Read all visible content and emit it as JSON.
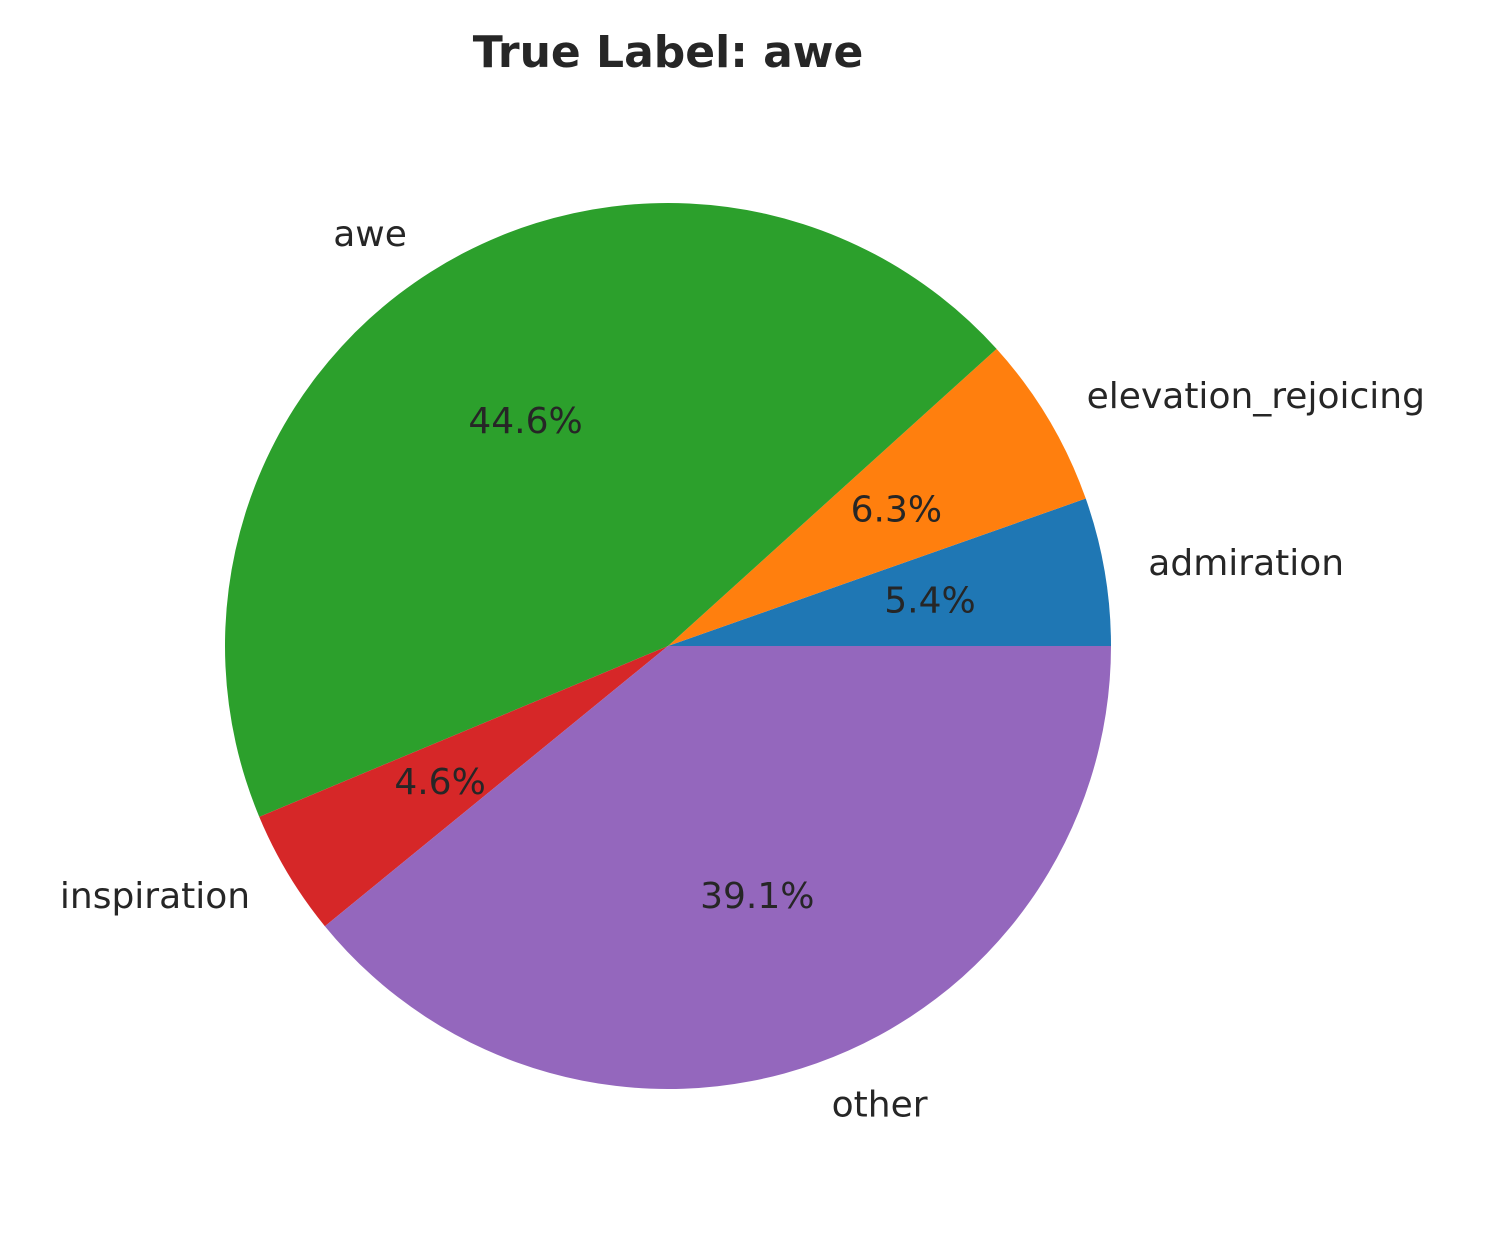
{
  "chart_data": {
    "type": "pie",
    "title": "True Label: awe",
    "labels": [
      "admiration",
      "elevation_rejoicing",
      "awe",
      "inspiration",
      "other"
    ],
    "values": [
      5.4,
      6.3,
      44.6,
      4.6,
      39.1
    ],
    "pct_labels": [
      "5.4%",
      "6.3%",
      "44.6%",
      "4.6%",
      "39.1%"
    ],
    "colors": [
      "#1f77b4",
      "#ff7f0e",
      "#2ca02c",
      "#d62728",
      "#9467bd"
    ],
    "start_angle_deg": 0,
    "direction": "counterclockwise",
    "legend": "none"
  }
}
